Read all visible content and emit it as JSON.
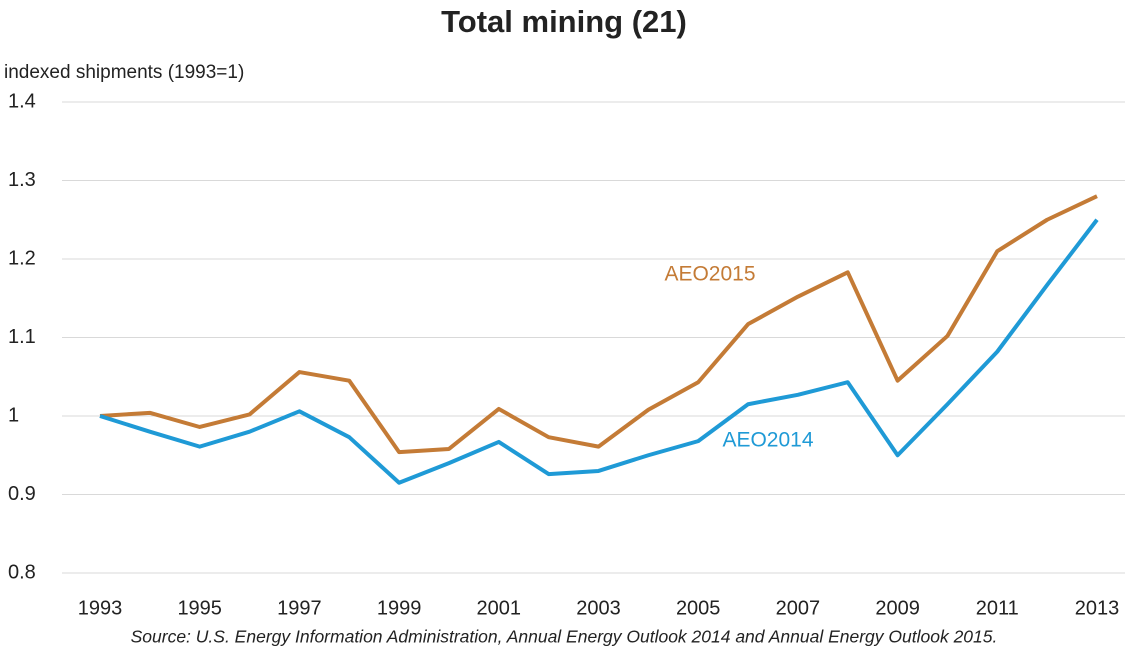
{
  "chart_data": {
    "type": "line",
    "title": "Total mining (21)",
    "y_label": "indexed shipments (1993=1)",
    "source": "Source: U.S. Energy Information Administration, Annual Energy Outlook 2014 and  Annual Energy Outlook 2015.",
    "x": [
      1993,
      1994,
      1995,
      1996,
      1997,
      1998,
      1999,
      2000,
      2001,
      2002,
      2003,
      2004,
      2005,
      2006,
      2007,
      2008,
      2009,
      2010,
      2011,
      2012,
      2013
    ],
    "series": [
      {
        "name": "AEO2015",
        "color": "#c47b36",
        "values": [
          1.0,
          1.004,
          0.986,
          1.002,
          1.056,
          1.045,
          0.954,
          0.958,
          1.009,
          0.973,
          0.961,
          1.008,
          1.043,
          1.117,
          1.152,
          1.183,
          1.045,
          1.102,
          1.21,
          1.25,
          1.28
        ]
      },
      {
        "name": "AEO2014",
        "color": "#1f9ad6",
        "values": [
          1.0,
          0.98,
          0.961,
          0.98,
          1.006,
          0.973,
          0.915,
          0.94,
          0.967,
          0.926,
          0.93,
          0.95,
          0.968,
          1.015,
          1.027,
          1.043,
          0.95,
          1.015,
          1.082,
          1.167,
          1.25
        ]
      }
    ],
    "xlim": [
      1993,
      2013
    ],
    "xticks": [
      1993,
      1995,
      1997,
      1999,
      2001,
      2003,
      2005,
      2007,
      2009,
      2011,
      2013
    ],
    "ylim": [
      0.8,
      1.4
    ],
    "yticks": [
      0.8,
      0.9,
      1,
      1.1,
      1.2,
      1.3,
      1.4
    ],
    "grid": true
  }
}
